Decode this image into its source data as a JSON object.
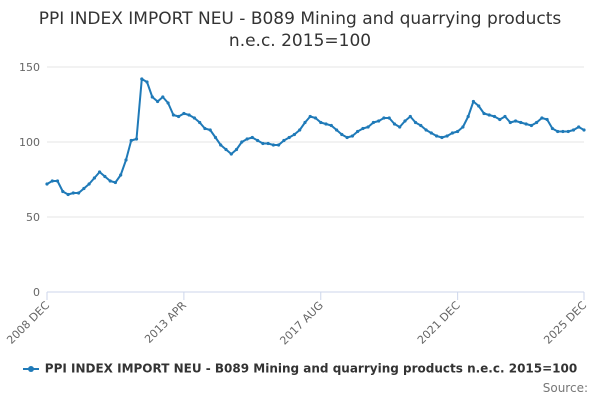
{
  "chart_data": {
    "type": "line",
    "title": "PPI INDEX IMPORT NEU - B089 Mining and quarrying products n.e.c. 2015=100",
    "xlabel": "",
    "ylabel": "",
    "ylim": [
      0,
      150
    ],
    "yticks": [
      "0",
      "50",
      "100",
      "150"
    ],
    "xticks": [
      "2008 DEC",
      "2013 APR",
      "2017 AUG",
      "2021 DEC",
      "2025 DEC"
    ],
    "grid": true,
    "legend_position": "bottom",
    "color": "#1f7ab8",
    "series": [
      {
        "name": "PPI INDEX IMPORT NEU - B089 Mining and quarrying products n.e.c. 2015=100",
        "x": [
          "2008 DEC",
          "2009 FEB",
          "2009 APR",
          "2009 JUN",
          "2009 AUG",
          "2009 OCT",
          "2009 DEC",
          "2010 FEB",
          "2010 APR",
          "2010 JUN",
          "2010 AUG",
          "2010 OCT",
          "2010 DEC",
          "2011 FEB",
          "2011 APR",
          "2011 JUN",
          "2011 AUG",
          "2011 OCT",
          "2011 DEC",
          "2012 FEB",
          "2012 APR",
          "2012 JUN",
          "2012 AUG",
          "2012 OCT",
          "2012 DEC",
          "2013 FEB",
          "2013 APR",
          "2013 JUN",
          "2013 AUG",
          "2013 OCT",
          "2013 DEC",
          "2014 FEB",
          "2014 APR",
          "2014 JUN",
          "2014 AUG",
          "2014 OCT",
          "2014 DEC",
          "2015 FEB",
          "2015 APR",
          "2015 JUN",
          "2015 AUG",
          "2015 OCT",
          "2015 DEC",
          "2016 FEB",
          "2016 APR",
          "2016 JUN",
          "2016 AUG",
          "2016 OCT",
          "2016 DEC",
          "2017 FEB",
          "2017 APR",
          "2017 JUN",
          "2017 AUG",
          "2017 OCT",
          "2017 DEC",
          "2018 FEB",
          "2018 APR",
          "2018 JUN",
          "2018 AUG",
          "2018 OCT",
          "2018 DEC",
          "2019 FEB",
          "2019 APR",
          "2019 JUN",
          "2019 AUG",
          "2019 OCT",
          "2019 DEC",
          "2020 FEB",
          "2020 APR",
          "2020 JUN",
          "2020 AUG",
          "2020 OCT",
          "2020 DEC",
          "2021 FEB",
          "2021 APR",
          "2021 JUN",
          "2021 AUG",
          "2021 OCT",
          "2021 DEC",
          "2022 FEB",
          "2022 APR",
          "2022 JUN",
          "2022 AUG",
          "2022 OCT",
          "2022 DEC",
          "2023 FEB",
          "2023 APR",
          "2023 JUN",
          "2023 AUG",
          "2023 OCT",
          "2023 DEC",
          "2024 FEB",
          "2024 APR",
          "2024 JUN",
          "2024 AUG",
          "2024 OCT",
          "2024 DEC",
          "2025 FEB",
          "2025 APR",
          "2025 JUN",
          "2025 AUG",
          "2025 OCT",
          "2025 DEC"
        ],
        "values": [
          72,
          74,
          74,
          67,
          65,
          66,
          66,
          69,
          72,
          76,
          80,
          77,
          74,
          73,
          78,
          88,
          101,
          102,
          142,
          140,
          130,
          127,
          130,
          126,
          118,
          117,
          119,
          118,
          116,
          113,
          109,
          108,
          103,
          98,
          95,
          92,
          95,
          100,
          102,
          103,
          101,
          99,
          99,
          98,
          98,
          101,
          103,
          105,
          108,
          113,
          117,
          116,
          113,
          112,
          111,
          108,
          105,
          103,
          104,
          107,
          109,
          110,
          113,
          114,
          116,
          116,
          112,
          110,
          114,
          117,
          113,
          111,
          108,
          106,
          104,
          103,
          104,
          106,
          107,
          110,
          117,
          127,
          124,
          119,
          118,
          117,
          115,
          117,
          113,
          114,
          113,
          112,
          111,
          113,
          116,
          115,
          109,
          107,
          107,
          107,
          108,
          110,
          108
        ]
      }
    ]
  },
  "credits": "Source:"
}
